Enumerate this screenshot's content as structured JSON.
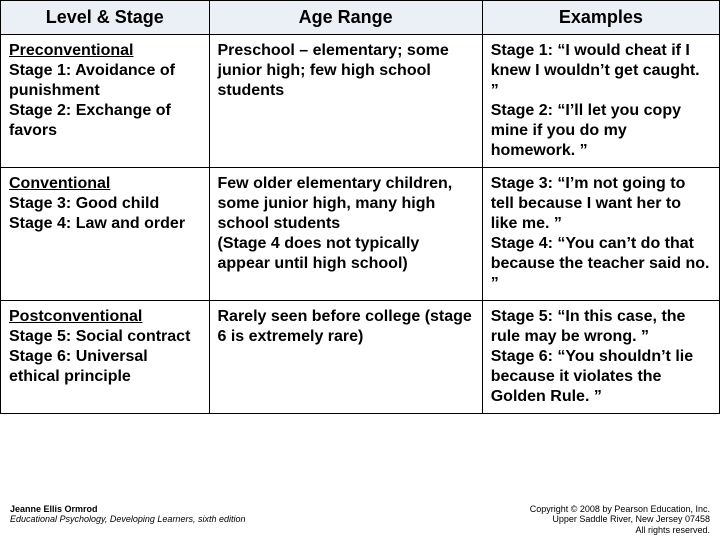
{
  "headers": {
    "c0": "Level & Stage",
    "c1": "Age Range",
    "c2": "Examples"
  },
  "rows": [
    {
      "level": "Preconventional",
      "stage_a": "Stage 1:  Avoidance of punishment",
      "stage_b": "Stage 2:  Exchange of favors",
      "age": "Preschool – elementary; some junior high; few high school students",
      "ex_a": "Stage 1: “I would cheat if I knew I wouldn’t get caught. ”",
      "ex_b": "Stage 2: “I’ll let you copy mine if you do my homework. ”"
    },
    {
      "level": "Conventional",
      "stage_a": "Stage 3: Good child",
      "stage_b": "Stage 4: Law and order",
      "age": "Few older elementary children, some junior high, many high school students",
      "age_extra": "(Stage 4 does not typically appear until high school)",
      "ex_a": "Stage 3: “I’m not going to tell because I want her to like me. ”",
      "ex_b": "Stage 4: “You can’t do that because the teacher said no. ”"
    },
    {
      "level": "Postconventional",
      "stage_a": "Stage 5: Social contract",
      "stage_b": "Stage 6: Universal ethical principle",
      "age": "Rarely seen before college (stage 6 is extremely rare)",
      "ex_a": "Stage 5: “In this case, the rule may be wrong. ”",
      "ex_b": "Stage 6: “You shouldn’t lie because it violates the Golden Rule. ”"
    }
  ],
  "footer": {
    "author": "Jeanne Ellis Ormrod",
    "book": "Educational Psychology, Developing Learners, sixth edition",
    "copyright_line1": "Copyright © 2008 by Pearson Education, Inc.",
    "copyright_line2": "Upper Saddle River, New Jersey 07458",
    "copyright_line3": "All rights reserved."
  },
  "styling": {
    "header_bg": "#ebf0f7",
    "border_color": "#000000",
    "body_bg": "#ffffff",
    "header_fontsize": 18,
    "cell_fontsize": 16,
    "footer_fontsize": 9,
    "col_widths_pct": [
      29,
      38,
      33
    ]
  }
}
